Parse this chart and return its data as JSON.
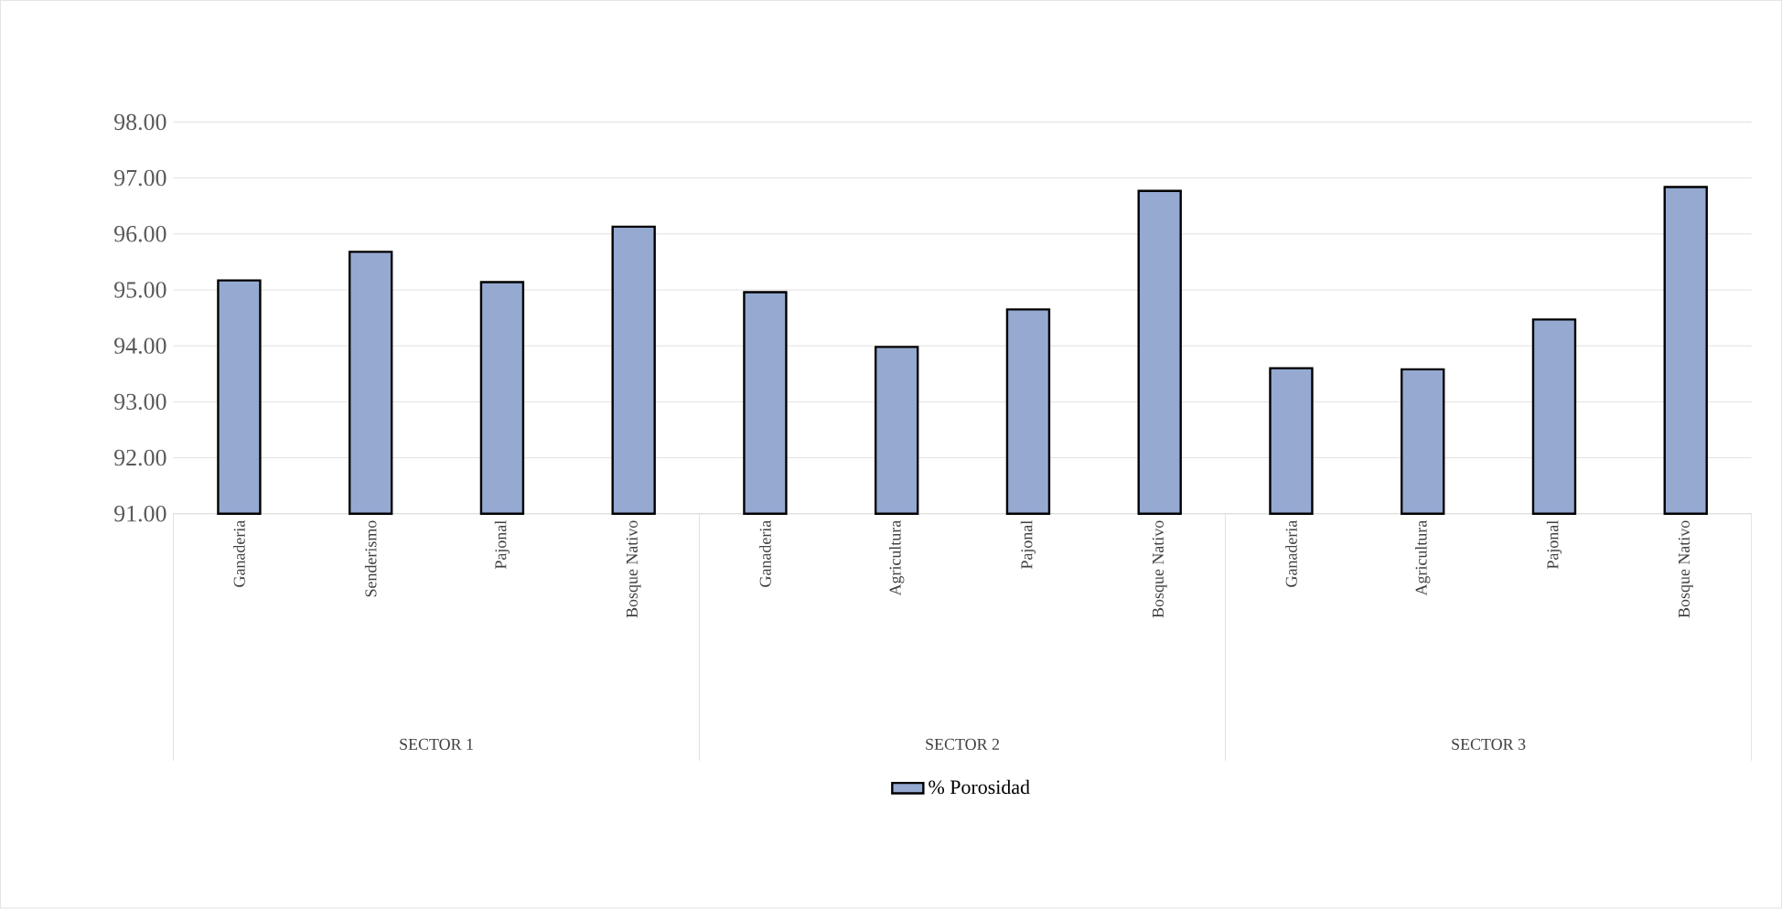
{
  "chart_data": {
    "type": "bar",
    "categories": [
      "Ganaderia",
      "Senderismo",
      "Pajonal",
      "Bosque Nativo",
      "Ganaderia",
      "Agricultura",
      "Pajonal",
      "Bosque Nativo",
      "Ganaderia",
      "Agricultura",
      "Pajonal",
      "Bosque Nativo"
    ],
    "series": [
      {
        "name": "% Porosidad",
        "color": "#95a9d1",
        "values": [
          95.17,
          95.68,
          95.14,
          96.13,
          94.96,
          93.98,
          94.65,
          96.77,
          93.6,
          93.58,
          94.47,
          96.84
        ]
      }
    ],
    "annotations": [
      "SECTOR 1",
      "SECTOR 2",
      "SECTOR 3"
    ],
    "ylim": [
      91,
      98
    ],
    "yticks": [
      {
        "value": 91,
        "label": "91.00"
      },
      {
        "value": 92,
        "label": "92.00"
      },
      {
        "value": 93,
        "label": "93.00"
      },
      {
        "value": 94,
        "label": "94.00"
      },
      {
        "value": 95,
        "label": "95.00"
      },
      {
        "value": 96,
        "label": "96.00"
      },
      {
        "value": 97,
        "label": "97.00"
      },
      {
        "value": 98,
        "label": "98.00"
      }
    ],
    "grid": "y",
    "legend": "bottom"
  }
}
